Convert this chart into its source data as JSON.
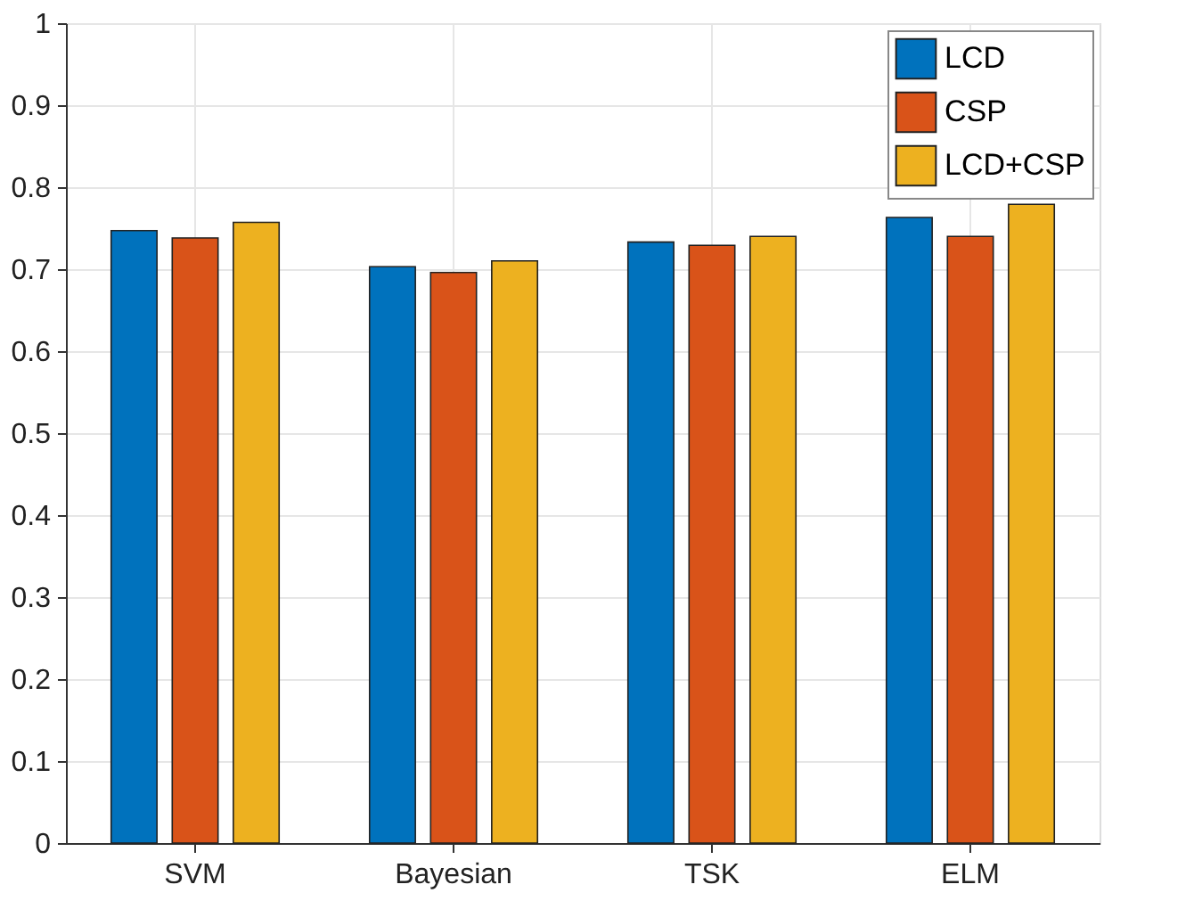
{
  "chart_data": {
    "type": "bar",
    "categories": [
      "SVM",
      "Bayesian",
      "TSK",
      "ELM"
    ],
    "series": [
      {
        "name": "LCD",
        "color": "#0072bd",
        "values": [
          0.747,
          0.703,
          0.733,
          0.763
        ]
      },
      {
        "name": "CSP",
        "color": "#d95319",
        "values": [
          0.738,
          0.696,
          0.729,
          0.74
        ]
      },
      {
        "name": "LCD+CSP",
        "color": "#edb120",
        "values": [
          0.757,
          0.71,
          0.74,
          0.779
        ]
      }
    ],
    "ylim": [
      0,
      1
    ],
    "yticks": [
      0,
      0.1,
      0.2,
      0.3,
      0.4,
      0.5,
      0.6,
      0.7,
      0.8,
      0.9,
      1
    ],
    "grid": true,
    "legend": "top right"
  }
}
